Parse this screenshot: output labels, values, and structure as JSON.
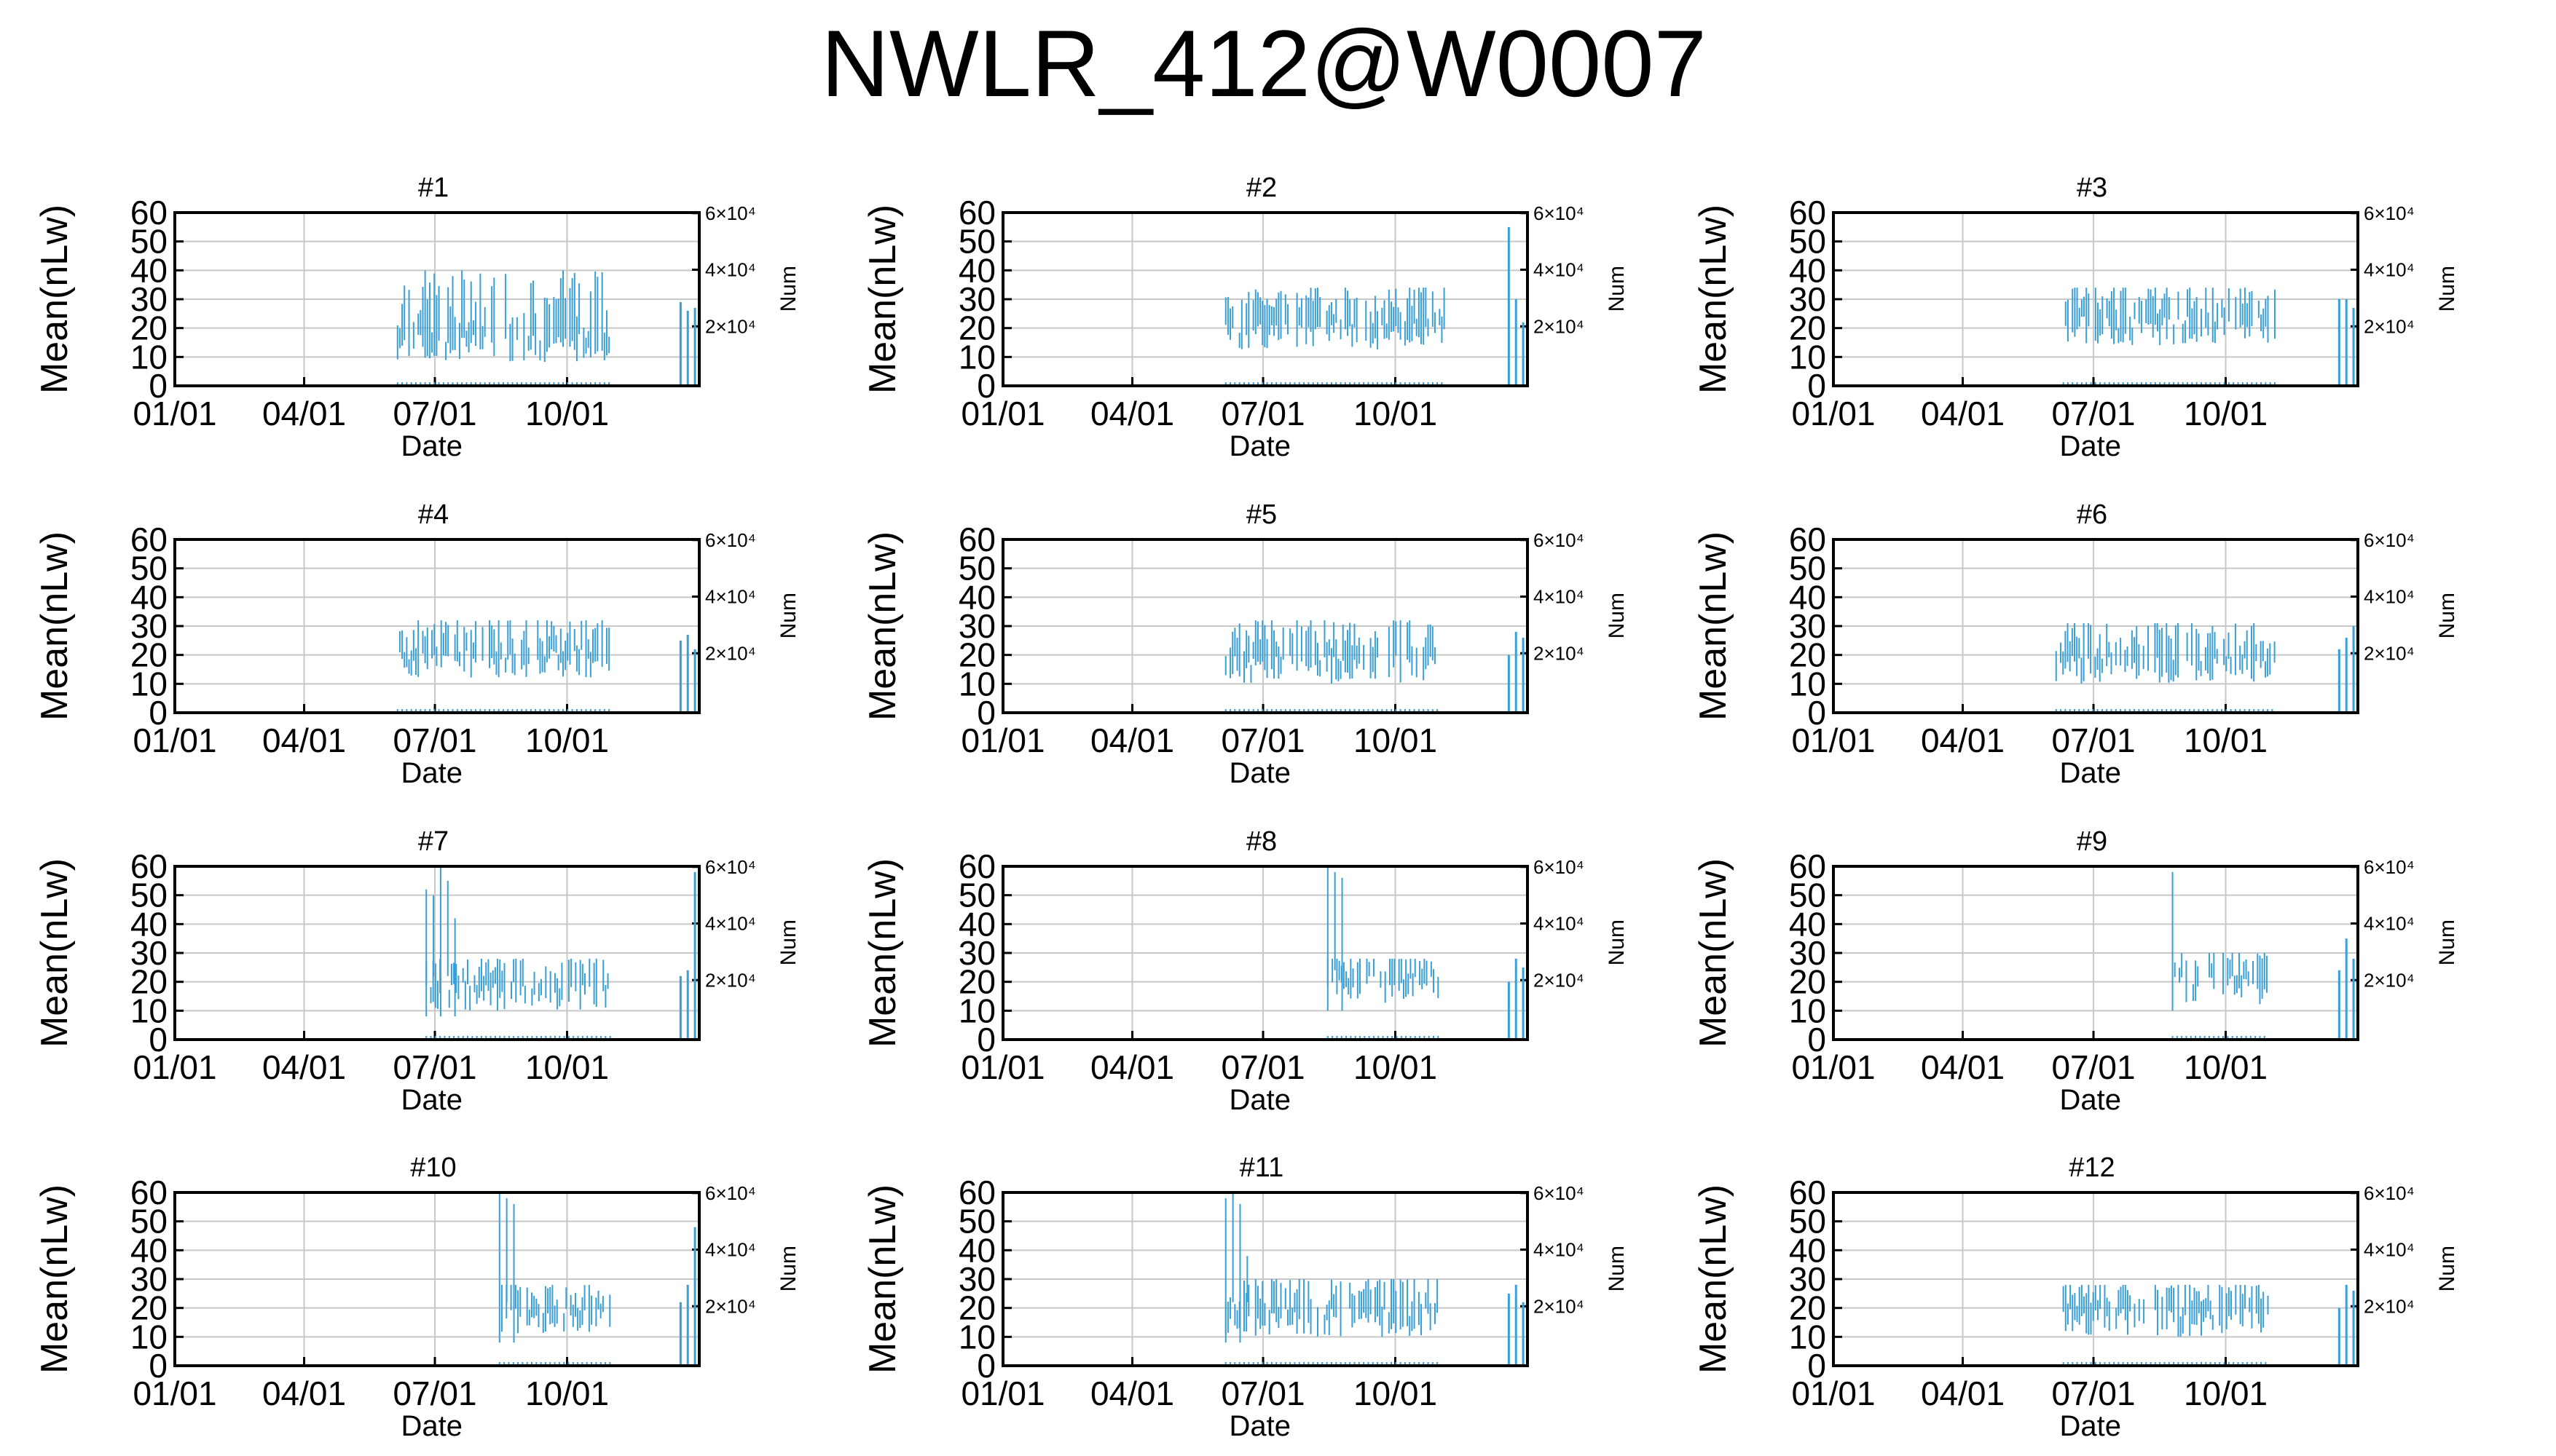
{
  "figure": {
    "title": "NWLR_412@W0007"
  },
  "chart_data": [
    {
      "type": "bar",
      "title": "#1",
      "xlabel": "Date",
      "ylabel": "Mean(nLw)",
      "y2label": "Num",
      "ylim": [
        0,
        60
      ],
      "y2ticks": [
        "2×10⁴",
        "4×10⁴",
        "6×10⁴"
      ],
      "xticks": [
        "01/01",
        "04/01",
        "07/01",
        "10/01"
      ],
      "grid": true,
      "data_start": "06/05",
      "data_end": "10/31",
      "y_range": [
        8,
        40
      ],
      "tail_values": [
        29,
        26,
        27
      ]
    },
    {
      "type": "bar",
      "title": "#2",
      "xlabel": "Date",
      "ylabel": "Mean(nLw)",
      "y2label": "Num",
      "ylim": [
        0,
        60
      ],
      "y2ticks": [
        "2×10⁴",
        "4×10⁴",
        "6×10⁴"
      ],
      "xticks": [
        "01/01",
        "04/01",
        "07/01",
        "10/01"
      ],
      "grid": true,
      "data_start": "06/05",
      "data_end": "11/05",
      "y_range": [
        12,
        34
      ],
      "tail_values": [
        55,
        30,
        22
      ]
    },
    {
      "type": "bar",
      "title": "#3",
      "xlabel": "Date",
      "ylabel": "Mean(nLw)",
      "y2label": "Num",
      "ylim": [
        0,
        60
      ],
      "y2ticks": [
        "2×10⁴",
        "4×10⁴",
        "6×10⁴"
      ],
      "xticks": [
        "01/01",
        "04/01",
        "07/01",
        "10/01"
      ],
      "grid": true,
      "data_start": "06/10",
      "data_end": "11/05",
      "y_range": [
        14,
        34
      ],
      "tail_values": [
        30,
        30,
        27
      ]
    },
    {
      "type": "bar",
      "title": "#4",
      "xlabel": "Date",
      "ylabel": "Mean(nLw)",
      "y2label": "Num",
      "ylim": [
        0,
        60
      ],
      "y2ticks": [
        "2×10⁴",
        "4×10⁴",
        "6×10⁴"
      ],
      "xticks": [
        "01/01",
        "04/01",
        "07/01",
        "10/01"
      ],
      "grid": true,
      "data_start": "06/05",
      "data_end": "10/31",
      "y_range": [
        12,
        32
      ],
      "tail_values": [
        25,
        27,
        22
      ]
    },
    {
      "type": "bar",
      "title": "#5",
      "xlabel": "Date",
      "ylabel": "Mean(nLw)",
      "y2label": "Num",
      "ylim": [
        0,
        60
      ],
      "y2ticks": [
        "2×10⁴",
        "4×10⁴",
        "6×10⁴"
      ],
      "xticks": [
        "01/01",
        "04/01",
        "07/01",
        "10/01"
      ],
      "grid": true,
      "data_start": "06/05",
      "data_end": "10/31",
      "y_range": [
        10,
        32
      ],
      "tail_values": [
        20,
        28,
        26
      ]
    },
    {
      "type": "bar",
      "title": "#6",
      "xlabel": "Date",
      "ylabel": "Mean(nLw)",
      "y2label": "Num",
      "ylim": [
        0,
        60
      ],
      "y2ticks": [
        "2×10⁴",
        "4×10⁴",
        "6×10⁴"
      ],
      "xticks": [
        "01/01",
        "04/01",
        "07/01",
        "10/01"
      ],
      "grid": true,
      "data_start": "06/05",
      "data_end": "11/05",
      "y_range": [
        10,
        31
      ],
      "tail_values": [
        22,
        26,
        30
      ]
    },
    {
      "type": "bar",
      "title": "#7",
      "xlabel": "Date",
      "ylabel": "Mean(nLw)",
      "y2label": "Num",
      "ylim": [
        0,
        60
      ],
      "y2ticks": [
        "2×10⁴",
        "4×10⁴",
        "6×10⁴"
      ],
      "xticks": [
        "01/01",
        "04/01",
        "07/01",
        "10/01"
      ],
      "grid": true,
      "data_start": "06/25",
      "data_end": "10/31",
      "y_range": [
        10,
        28
      ],
      "spike_values": [
        52,
        50,
        60,
        55,
        42
      ],
      "tail_values": [
        22,
        24,
        58
      ]
    },
    {
      "type": "bar",
      "title": "#8",
      "xlabel": "Date",
      "ylabel": "Mean(nLw)",
      "y2label": "Num",
      "ylim": [
        0,
        60
      ],
      "y2ticks": [
        "2×10⁴",
        "4×10⁴",
        "6×10⁴"
      ],
      "xticks": [
        "01/01",
        "04/01",
        "07/01",
        "10/01"
      ],
      "grid": true,
      "data_start": "08/15",
      "data_end": "10/31",
      "y_range": [
        12,
        28
      ],
      "spike_values": [
        60,
        58,
        56
      ],
      "tail_values": [
        20,
        28,
        25
      ]
    },
    {
      "type": "bar",
      "title": "#9",
      "xlabel": "Date",
      "ylabel": "Mean(nLw)",
      "y2label": "Num",
      "ylim": [
        0,
        60
      ],
      "y2ticks": [
        "2×10⁴",
        "4×10⁴",
        "6×10⁴"
      ],
      "xticks": [
        "01/01",
        "04/01",
        "07/01",
        "10/01"
      ],
      "grid": true,
      "data_start": "08/25",
      "data_end": "10/31",
      "y_range": [
        12,
        30
      ],
      "spike_values": [
        58
      ],
      "tail_values": [
        24,
        35,
        28
      ]
    },
    {
      "type": "bar",
      "title": "#10",
      "xlabel": "Date",
      "ylabel": "Mean(nLw)",
      "y2label": "Num",
      "ylim": [
        0,
        60
      ],
      "y2ticks": [
        "2×10⁴",
        "4×10⁴",
        "6×10⁴"
      ],
      "xticks": [
        "01/01",
        "04/01",
        "07/01",
        "10/01"
      ],
      "grid": true,
      "data_start": "08/15",
      "data_end": "10/31",
      "y_range": [
        10,
        28
      ],
      "spike_values": [
        60,
        58,
        56
      ],
      "tail_values": [
        22,
        28,
        48
      ]
    },
    {
      "type": "bar",
      "title": "#11",
      "xlabel": "Date",
      "ylabel": "Mean(nLw)",
      "y2label": "Num",
      "ylim": [
        0,
        60
      ],
      "y2ticks": [
        "2×10⁴",
        "4×10⁴",
        "6×10⁴"
      ],
      "xticks": [
        "01/01",
        "04/01",
        "07/01",
        "10/01"
      ],
      "grid": true,
      "data_start": "06/05",
      "data_end": "10/31",
      "y_range": [
        10,
        30
      ],
      "spike_values": [
        58,
        60,
        56,
        38
      ],
      "tail_values": [
        25,
        28,
        22
      ]
    },
    {
      "type": "bar",
      "title": "#12",
      "xlabel": "Date",
      "ylabel": "Mean(nLw)",
      "y2label": "Num",
      "ylim": [
        0,
        60
      ],
      "y2ticks": [
        "2×10⁴",
        "4×10⁴",
        "6×10⁴"
      ],
      "xticks": [
        "01/01",
        "04/01",
        "07/01",
        "10/01"
      ],
      "grid": true,
      "data_start": "06/10",
      "data_end": "10/31",
      "y_range": [
        10,
        28
      ],
      "tail_values": [
        20,
        28,
        26
      ]
    }
  ]
}
